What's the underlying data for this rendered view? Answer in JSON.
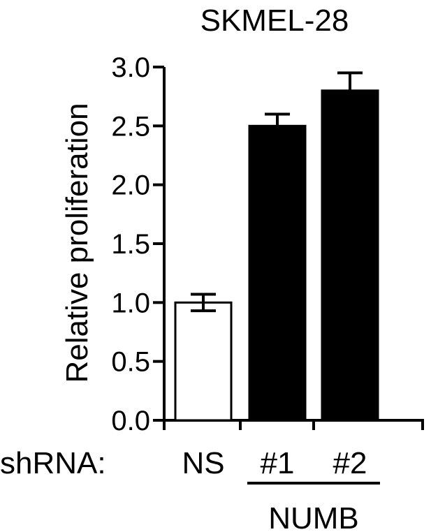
{
  "chart_data": {
    "type": "bar",
    "title": "SKMEL-28",
    "ylabel": "Relative proliferation",
    "xlabel": "",
    "ylim": [
      0,
      3.0
    ],
    "yticks": [
      "0.0",
      "0.5",
      "1.0",
      "1.5",
      "2.0",
      "2.5",
      "3.0"
    ],
    "row_label": "shRNA:",
    "categories": [
      "NS",
      "#1",
      "#2"
    ],
    "values": [
      1.0,
      2.5,
      2.8
    ],
    "errors": [
      0.07,
      0.1,
      0.15
    ],
    "fills": [
      "#ffffff",
      "#000000",
      "#000000"
    ],
    "group_label": "NUMB",
    "group_members": [
      "#1",
      "#2"
    ],
    "grid": false,
    "legend": "none"
  }
}
